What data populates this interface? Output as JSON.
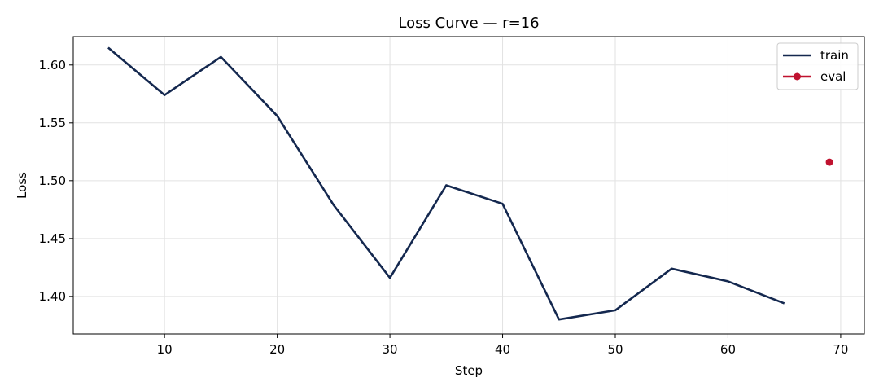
{
  "chart_data": {
    "type": "line",
    "title": "Loss Curve — r=16",
    "xlabel": "Step",
    "ylabel": "Loss",
    "xlim": [
      1.9,
      72.1
    ],
    "ylim": [
      1.3675,
      1.6245
    ],
    "xticks": [
      10,
      20,
      30,
      40,
      50,
      60,
      70
    ],
    "yticks": [
      1.4,
      1.45,
      1.5,
      1.55,
      1.6
    ],
    "xtick_labels": [
      "10",
      "20",
      "30",
      "40",
      "50",
      "60",
      "70"
    ],
    "ytick_labels": [
      "1.40",
      "1.45",
      "1.50",
      "1.55",
      "1.60"
    ],
    "grid": true,
    "legend_position": "top-right",
    "series": [
      {
        "name": "train",
        "color": "#14284f",
        "marker": "none",
        "x": [
          5,
          10,
          15,
          20,
          25,
          30,
          35,
          40,
          45,
          50,
          55,
          60,
          65
        ],
        "y": [
          1.615,
          1.574,
          1.607,
          1.556,
          1.479,
          1.416,
          1.496,
          1.48,
          1.38,
          1.388,
          1.424,
          1.413,
          1.394
        ]
      },
      {
        "name": "eval",
        "color": "#c0122f",
        "marker": "circle",
        "x": [
          69
        ],
        "y": [
          1.516
        ]
      }
    ]
  }
}
